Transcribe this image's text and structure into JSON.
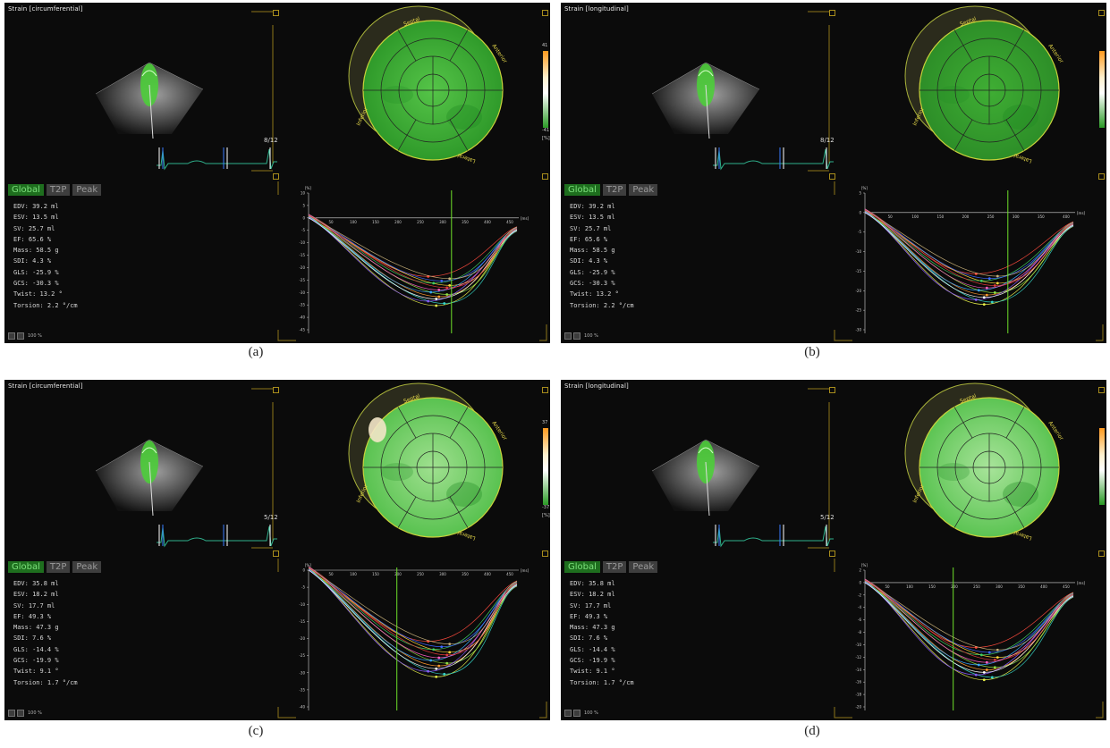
{
  "panels": [
    {
      "id": "a",
      "caption": "(a)",
      "title": "Strain [circumferential]",
      "frame": "8/12",
      "scale": {
        "max": "41",
        "min": "-41",
        "unit": "[%]",
        "show_labels": true
      },
      "tabs": {
        "global": "Global",
        "t2p": "T2P",
        "peak": "Peak"
      },
      "stats": [
        "EDV: 39.2 ml",
        "ESV: 13.5 ml",
        "SV: 25.7 ml",
        "EF: 65.6 %",
        "Mass: 58.5 g",
        "SDI: 4.3 %",
        "GLS: -25.9 %",
        "GCS: -30.3 %",
        "Twist: 13.2 °",
        "Torsion: 2.2 °/cm"
      ],
      "zoom": "100 %",
      "bullseye": {
        "labels": [
          "Septal",
          "Anterior",
          "Inferior",
          "Lateral"
        ],
        "color_center": "#55c448",
        "color_edge": "#2f9a2a",
        "hotspot": null
      },
      "graph": {
        "y_unit": "[%]",
        "x_unit": "[ms]",
        "y_ticks": [
          "10",
          "5",
          "0",
          "-5",
          "-10",
          "-15",
          "-20",
          "-25",
          "-30",
          "-35",
          "-40",
          "-45"
        ],
        "x_ticks": [
          "50",
          "100",
          "150",
          "200",
          "250",
          "300",
          "350",
          "400",
          "450"
        ]
      }
    },
    {
      "id": "b",
      "caption": "(b)",
      "title": "Strain [longitudinal]",
      "frame": "8/12",
      "scale": {
        "max": "",
        "min": "",
        "unit": "",
        "show_labels": false
      },
      "tabs": {
        "global": "Global",
        "t2p": "T2P",
        "peak": "Peak"
      },
      "stats": [
        "EDV: 39.2 ml",
        "ESV: 13.5 ml",
        "SV: 25.7 ml",
        "EF: 65.6 %",
        "Mass: 58.5 g",
        "SDI: 4.3 %",
        "GLS: -25.9 %",
        "GCS: -30.3 %",
        "Twist: 13.2 °",
        "Torsion: 2.2 °/cm"
      ],
      "zoom": "100 %",
      "bullseye": {
        "labels": [
          "Septal",
          "Anterior",
          "Inferior",
          "Lateral"
        ],
        "color_center": "#3fae34",
        "color_edge": "#2d8e28",
        "hotspot": null
      },
      "graph": {
        "y_unit": "[%]",
        "x_unit": "[ms]",
        "y_ticks": [
          "5",
          "0",
          "-5",
          "-10",
          "-15",
          "-20",
          "-25",
          "-30"
        ],
        "x_ticks": [
          "50",
          "100",
          "150",
          "200",
          "250",
          "300",
          "350",
          "400"
        ]
      }
    },
    {
      "id": "c",
      "caption": "(c)",
      "title": "Strain [circumferential]",
      "frame": "5/12",
      "scale": {
        "max": "37",
        "min": "-37",
        "unit": "[%]",
        "show_labels": true
      },
      "tabs": {
        "global": "Global",
        "t2p": "T2P",
        "peak": "Peak"
      },
      "stats": [
        "EDV: 35.8 ml",
        "ESV: 18.2 ml",
        "SV: 17.7 ml",
        "EF: 49.3 %",
        "Mass: 47.3 g",
        "SDI: 7.6 %",
        "GLS: -14.4 %",
        "GCS: -19.9 %",
        "Twist: 9.1 °",
        "Torsion: 1.7 °/cm"
      ],
      "zoom": "100 %",
      "bullseye": {
        "labels": [
          "Septal",
          "Anterior",
          "Inferior",
          "Lateral"
        ],
        "color_center": "#9fe08f",
        "color_edge": "#59c250",
        "hotspot": "#f3e6c8"
      },
      "graph": {
        "y_unit": "[%]",
        "x_unit": "[ms]",
        "y_ticks": [
          "0",
          "-5",
          "-10",
          "-15",
          "-20",
          "-25",
          "-30",
          "-35",
          "-40"
        ],
        "x_ticks": [
          "50",
          "100",
          "150",
          "200",
          "250",
          "300",
          "350",
          "400",
          "450"
        ]
      }
    },
    {
      "id": "d",
      "caption": "(d)",
      "title": "Strain [longitudinal]",
      "frame": "5/12",
      "scale": {
        "max": "",
        "min": "",
        "unit": "",
        "show_labels": false
      },
      "tabs": {
        "global": "Global",
        "t2p": "T2P",
        "peak": "Peak"
      },
      "stats": [
        "EDV: 35.8 ml",
        "ESV: 18.2 ml",
        "SV: 17.7 ml",
        "EF: 49.3 %",
        "Mass: 47.3 g",
        "SDI: 7.6 %",
        "GLS: -14.4 %",
        "GCS: -19.9 %",
        "Twist: 9.1 °",
        "Torsion: 1.7 °/cm"
      ],
      "zoom": "100 %",
      "bullseye": {
        "labels": [
          "Septal",
          "Anterior",
          "Inferior",
          "Lateral"
        ],
        "color_center": "#a8e49a",
        "color_edge": "#5cc453",
        "hotspot": null
      },
      "graph": {
        "y_unit": "[%]",
        "x_unit": "[ms]",
        "y_ticks": [
          "2",
          "0",
          "-2",
          "-4",
          "-6",
          "-8",
          "-10",
          "-12",
          "-14",
          "-16",
          "-18",
          "-20"
        ],
        "x_ticks": [
          "50",
          "100",
          "150",
          "200",
          "250",
          "300",
          "350",
          "400",
          "450"
        ]
      }
    }
  ]
}
